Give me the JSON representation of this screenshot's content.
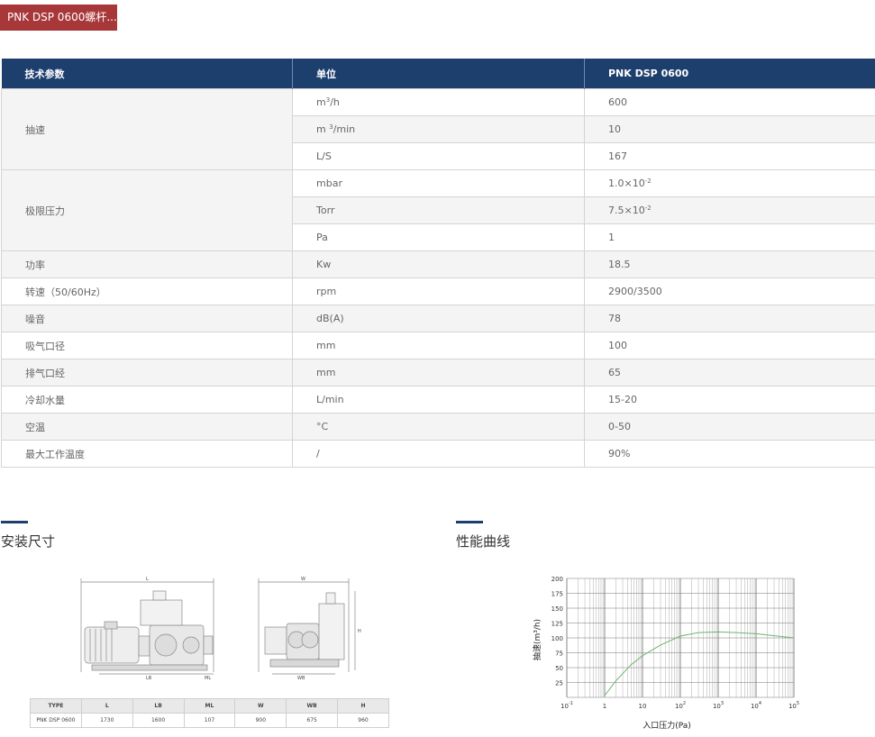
{
  "tab": {
    "label": "PNK DSP 0600螺杆..."
  },
  "spec_table": {
    "headers": [
      "技术参数",
      "单位",
      "PNK DSP 0600"
    ],
    "groups": {
      "speed": {
        "param": "抽速",
        "rows": [
          {
            "unit_base": "m",
            "unit_sup": "3",
            "unit_tail": "/h",
            "value": "600"
          },
          {
            "unit_base": "m ",
            "unit_sup": "3",
            "unit_tail": "/min",
            "value": "10"
          },
          {
            "unit_base": "L/S",
            "unit_sup": "",
            "unit_tail": "",
            "value": "167"
          }
        ]
      },
      "ultimate": {
        "param": "极限压力",
        "rows": [
          {
            "unit": "mbar",
            "value_base": "1.0×10",
            "value_sup": "-2"
          },
          {
            "unit": "Torr",
            "value_base": "7.5×10",
            "value_sup": "-2"
          },
          {
            "unit": "Pa",
            "value_base": "1",
            "value_sup": ""
          }
        ]
      }
    },
    "rows": [
      {
        "param": "功率",
        "unit": "Kw",
        "value": "18.5"
      },
      {
        "param": "转速（50/60Hz）",
        "unit": "rpm",
        "value": "2900/3500"
      },
      {
        "param": "噪音",
        "unit": "dB(A)",
        "value": "78"
      },
      {
        "param": "吸气口径",
        "unit": "mm",
        "value": "100"
      },
      {
        "param": "排气口经",
        "unit": "mm",
        "value": "65"
      },
      {
        "param": "冷却水量",
        "unit": "L/min",
        "value": "15-20"
      },
      {
        "param": "空温",
        "unit": "°C",
        "value": "0-50"
      },
      {
        "param": "最大工作温度",
        "unit": "/",
        "value": "90%"
      }
    ]
  },
  "sections": {
    "install": "安装尺寸",
    "performance": "性能曲线"
  },
  "drawing": {
    "labels": {
      "L": "L",
      "LB": "LB",
      "ML": "ML",
      "W": "W",
      "WB": "WB",
      "H": "H"
    },
    "table": {
      "headers": [
        "TYPE",
        "L",
        "LB",
        "ML",
        "W",
        "WB",
        "H"
      ],
      "row": [
        "PNK DSP 0600",
        "1730",
        "1600",
        "107",
        "900",
        "675",
        "960"
      ]
    }
  },
  "chart_data": {
    "type": "line",
    "xlabel": "入口压力(Pa)",
    "ylabel": "抽速(m³/h)",
    "x_scale": "log",
    "xlim": [
      0.1,
      100000
    ],
    "ylim": [
      0,
      200
    ],
    "x_ticks": [
      {
        "base": "10",
        "exp": "-1"
      },
      {
        "base": "1",
        "exp": ""
      },
      {
        "base": "10",
        "exp": ""
      },
      {
        "base": "10",
        "exp": "2"
      },
      {
        "base": "10",
        "exp": "3"
      },
      {
        "base": "10",
        "exp": "4"
      },
      {
        "base": "10",
        "exp": "5"
      }
    ],
    "y_ticks": [
      "25",
      "50",
      "75",
      "100",
      "125",
      "150",
      "175",
      "200"
    ],
    "grid": true,
    "line_color": "#6fb46f",
    "series": [
      {
        "x": [
          1,
          2,
          5,
          10,
          30,
          100,
          300,
          1000,
          3000,
          10000,
          100000
        ],
        "y": [
          3,
          28,
          55,
          70,
          88,
          103,
          109,
          110,
          109,
          107,
          100
        ]
      }
    ]
  }
}
